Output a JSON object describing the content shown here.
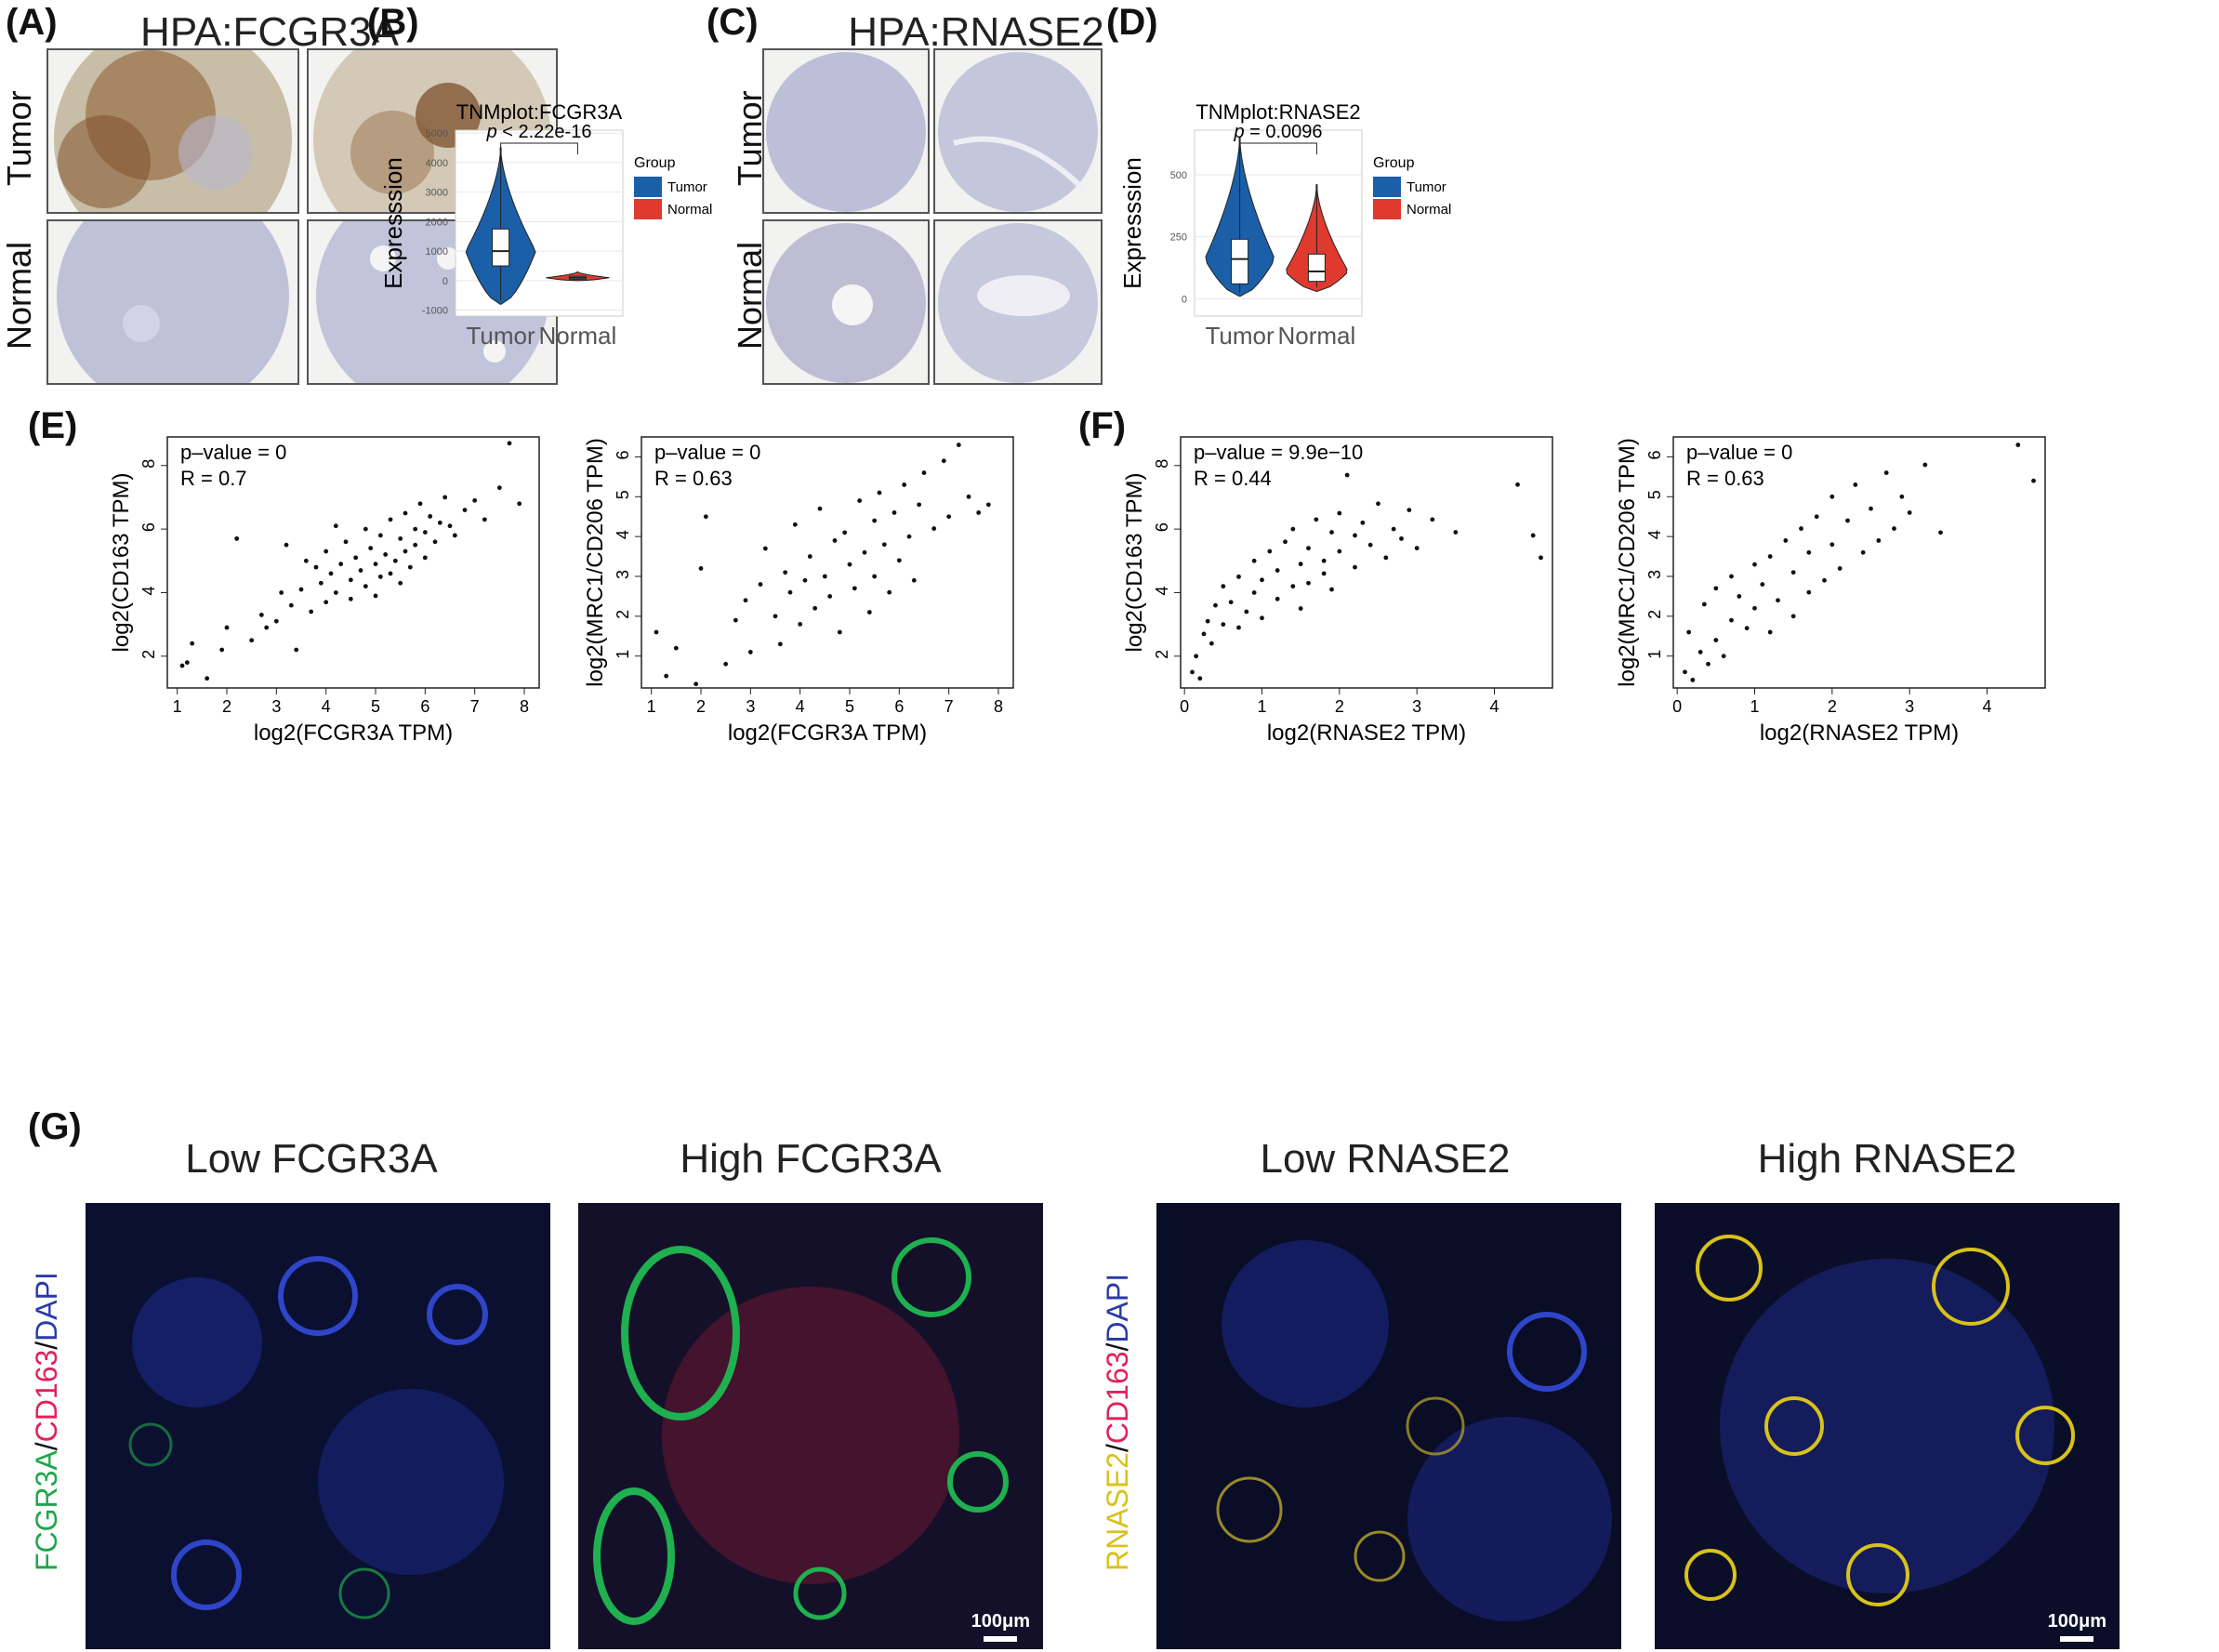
{
  "panels": {
    "A": {
      "label": "(A)",
      "title": "HPA:FCGR3A",
      "rows": [
        "Tumor",
        "Normal"
      ]
    },
    "B": {
      "label": "(B)"
    },
    "C": {
      "label": "(C)",
      "title": "HPA:RNASE2",
      "rows": [
        "Tumor",
        "Normal"
      ]
    },
    "D": {
      "label": "(D)"
    },
    "E": {
      "label": "(E)"
    },
    "F": {
      "label": "(F)"
    },
    "G": {
      "label": "(G)",
      "titles": [
        "Low FCGR3A",
        "High FCGR3A",
        "Low RNASE2",
        "High RNASE2"
      ],
      "side_left": {
        "parts": [
          "FCGR3A",
          "/",
          "CD163",
          "/",
          "DAPI"
        ]
      },
      "side_right": {
        "parts": [
          "RNASE2",
          "/",
          "CD163",
          "/",
          "DAPI"
        ]
      },
      "scalebar": "100μm"
    }
  },
  "colors": {
    "tumor": "#1a5fa8",
    "normal": "#e03a2f",
    "fcgr3a": "#1fa64a",
    "cd163": "#e0215a",
    "dapi": "#2b3aa8",
    "rnase2": "#d8c21a"
  },
  "chart_data": [
    {
      "id": "B",
      "type": "violin",
      "title": "TNMplot:FCGR3A",
      "ylabel": "Expresssion",
      "categories": [
        "Tumor",
        "Normal"
      ],
      "yticks": [
        5000,
        4000,
        3000,
        2000,
        1000,
        0,
        -1000
      ],
      "ylim": [
        -1200,
        5100
      ],
      "series": [
        {
          "name": "Tumor",
          "min": -800,
          "q1": 500,
          "median": 1000,
          "q3": 1750,
          "max": 4500
        },
        {
          "name": "Normal",
          "min": 0,
          "q1": 50,
          "median": 100,
          "q3": 150,
          "max": 300
        }
      ],
      "annotation": {
        "prefix": "p",
        "text": " < 2.22e-16"
      },
      "legend": {
        "title": "Group",
        "entries": [
          "Tumor",
          "Normal"
        ],
        "position": "right"
      }
    },
    {
      "id": "D",
      "type": "violin",
      "title": "TNMplot:RNASE2",
      "ylabel": "Expresssion",
      "categories": [
        "Tumor",
        "Normal"
      ],
      "yticks": [
        500,
        250,
        0
      ],
      "ylim": [
        -70,
        680
      ],
      "series": [
        {
          "name": "Tumor",
          "min": 10,
          "q1": 60,
          "median": 160,
          "q3": 240,
          "max": 650
        },
        {
          "name": "Normal",
          "min": 30,
          "q1": 70,
          "median": 110,
          "q3": 180,
          "max": 460
        }
      ],
      "annotation": {
        "prefix": "p",
        "text": " = 0.0096"
      },
      "legend": {
        "title": "Group",
        "entries": [
          "Tumor",
          "Normal"
        ],
        "position": "right"
      }
    },
    {
      "id": "E1",
      "type": "scatter",
      "xlabel": "log2(FCGR3A TPM)",
      "ylabel": "log2(CD163 TPM)",
      "xticks": [
        1,
        2,
        3,
        4,
        5,
        6,
        7,
        8
      ],
      "yticks": [
        2,
        4,
        6,
        8
      ],
      "xlim": [
        0.8,
        8.3
      ],
      "ylim": [
        1.0,
        8.9
      ],
      "pvalue": "p–value = 0",
      "r": "R = 0.7",
      "x": [
        1.1,
        1.3,
        1.2,
        1.6,
        1.9,
        2.0,
        2.2,
        2.5,
        2.7,
        2.8,
        3.0,
        3.1,
        3.2,
        3.3,
        3.4,
        3.5,
        3.6,
        3.7,
        3.8,
        3.9,
        4.0,
        4.0,
        4.1,
        4.2,
        4.2,
        4.3,
        4.4,
        4.5,
        4.5,
        4.6,
        4.7,
        4.8,
        4.8,
        4.9,
        5.0,
        5.0,
        5.1,
        5.1,
        5.2,
        5.3,
        5.3,
        5.4,
        5.5,
        5.5,
        5.6,
        5.6,
        5.7,
        5.8,
        5.8,
        5.9,
        6.0,
        6.0,
        6.1,
        6.2,
        6.3,
        6.4,
        6.5,
        6.6,
        6.8,
        7.0,
        7.2,
        7.5,
        7.7,
        7.9
      ],
      "y": [
        1.7,
        2.4,
        1.8,
        1.3,
        2.2,
        2.9,
        5.7,
        2.5,
        3.3,
        2.9,
        3.1,
        4.0,
        5.5,
        3.6,
        2.2,
        4.1,
        5.0,
        3.4,
        4.8,
        4.3,
        3.7,
        5.3,
        4.6,
        4.0,
        6.1,
        4.9,
        5.6,
        4.4,
        3.8,
        5.1,
        4.7,
        6.0,
        4.2,
        5.4,
        4.9,
        3.9,
        5.8,
        4.5,
        5.2,
        6.3,
        4.6,
        5.0,
        5.7,
        4.3,
        6.5,
        5.3,
        4.8,
        6.0,
        5.5,
        6.8,
        5.1,
        5.9,
        6.4,
        5.6,
        6.2,
        7.0,
        6.1,
        5.8,
        6.6,
        6.9,
        6.3,
        7.3,
        8.7,
        6.8
      ]
    },
    {
      "id": "E2",
      "type": "scatter",
      "xlabel": "log2(FCGR3A TPM)",
      "ylabel": "log2(MRC1/CD206 TPM)",
      "xticks": [
        1,
        2,
        3,
        4,
        5,
        6,
        7,
        8
      ],
      "yticks": [
        1,
        2,
        3,
        4,
        5,
        6
      ],
      "xlim": [
        0.8,
        8.3
      ],
      "ylim": [
        0.2,
        6.5
      ],
      "pvalue": "p–value = 0",
      "r": "R = 0.63",
      "x": [
        1.1,
        1.3,
        1.5,
        1.9,
        2.0,
        2.1,
        2.5,
        2.7,
        2.9,
        3.0,
        3.2,
        3.3,
        3.5,
        3.6,
        3.7,
        3.8,
        3.9,
        4.0,
        4.1,
        4.2,
        4.3,
        4.4,
        4.5,
        4.6,
        4.7,
        4.8,
        4.9,
        5.0,
        5.1,
        5.2,
        5.3,
        5.4,
        5.5,
        5.5,
        5.6,
        5.7,
        5.8,
        5.9,
        6.0,
        6.1,
        6.2,
        6.3,
        6.4,
        6.5,
        6.7,
        6.9,
        7.0,
        7.2,
        7.4,
        7.6,
        7.8
      ],
      "y": [
        1.6,
        0.5,
        1.2,
        0.3,
        3.2,
        4.5,
        0.8,
        1.9,
        2.4,
        1.1,
        2.8,
        3.7,
        2.0,
        1.3,
        3.1,
        2.6,
        4.3,
        1.8,
        2.9,
        3.5,
        2.2,
        4.7,
        3.0,
        2.5,
        3.9,
        1.6,
        4.1,
        3.3,
        2.7,
        4.9,
        3.6,
        2.1,
        4.4,
        3.0,
        5.1,
        3.8,
        2.6,
        4.6,
        3.4,
        5.3,
        4.0,
        2.9,
        4.8,
        5.6,
        4.2,
        5.9,
        4.5,
        6.3,
        5.0,
        4.6,
        4.8
      ]
    },
    {
      "id": "F1",
      "type": "scatter",
      "xlabel": "log2(RNASE2 TPM)",
      "ylabel": "log2(CD163 TPM)",
      "xticks": [
        0,
        1,
        2,
        3,
        4
      ],
      "yticks": [
        2,
        4,
        6,
        8
      ],
      "xlim": [
        -0.05,
        4.75
      ],
      "ylim": [
        1.0,
        8.9
      ],
      "pvalue": "p–value = 9.9e−10",
      "r": "R = 0.44",
      "x": [
        0.1,
        0.15,
        0.2,
        0.25,
        0.3,
        0.35,
        0.4,
        0.5,
        0.5,
        0.6,
        0.7,
        0.7,
        0.8,
        0.9,
        0.9,
        1.0,
        1.0,
        1.1,
        1.2,
        1.2,
        1.3,
        1.4,
        1.4,
        1.5,
        1.5,
        1.6,
        1.6,
        1.7,
        1.8,
        1.8,
        1.9,
        1.9,
        2.0,
        2.0,
        2.1,
        2.2,
        2.2,
        2.3,
        2.4,
        2.5,
        2.6,
        2.7,
        2.8,
        2.9,
        3.0,
        3.2,
        3.5,
        4.3,
        4.5,
        4.6
      ],
      "y": [
        1.5,
        2.0,
        1.3,
        2.7,
        3.1,
        2.4,
        3.6,
        3.0,
        4.2,
        3.7,
        4.5,
        2.9,
        3.4,
        5.0,
        4.0,
        4.4,
        3.2,
        5.3,
        4.7,
        3.8,
        5.6,
        4.2,
        6.0,
        4.9,
        3.5,
        5.4,
        4.3,
        6.3,
        5.0,
        4.6,
        5.9,
        4.1,
        6.5,
        5.3,
        7.7,
        5.8,
        4.8,
        6.2,
        5.5,
        6.8,
        5.1,
        6.0,
        5.7,
        6.6,
        5.4,
        6.3,
        5.9,
        7.4,
        5.8,
        5.1
      ]
    },
    {
      "id": "F2",
      "type": "scatter",
      "xlabel": "log2(RNASE2 TPM)",
      "ylabel": "log2(MRC1/CD206 TPM)",
      "xticks": [
        0,
        1,
        2,
        3,
        4
      ],
      "yticks": [
        1,
        2,
        3,
        4,
        5,
        6
      ],
      "xlim": [
        -0.05,
        4.75
      ],
      "ylim": [
        0.2,
        6.5
      ],
      "pvalue": "p–value = 0",
      "r": "R = 0.63",
      "x": [
        0.1,
        0.15,
        0.2,
        0.3,
        0.35,
        0.4,
        0.5,
        0.5,
        0.6,
        0.7,
        0.7,
        0.8,
        0.9,
        1.0,
        1.0,
        1.1,
        1.2,
        1.2,
        1.3,
        1.4,
        1.5,
        1.5,
        1.6,
        1.7,
        1.7,
        1.8,
        1.9,
        2.0,
        2.0,
        2.1,
        2.2,
        2.3,
        2.4,
        2.5,
        2.6,
        2.7,
        2.8,
        2.9,
        3.0,
        3.2,
        3.4,
        4.4,
        4.6
      ],
      "y": [
        0.6,
        1.6,
        0.4,
        1.1,
        2.3,
        0.8,
        1.4,
        2.7,
        1.0,
        3.0,
        1.9,
        2.5,
        1.7,
        3.3,
        2.2,
        2.8,
        1.6,
        3.5,
        2.4,
        3.9,
        2.0,
        3.1,
        4.2,
        2.6,
        3.6,
        4.5,
        2.9,
        3.8,
        5.0,
        3.2,
        4.4,
        5.3,
        3.6,
        4.7,
        3.9,
        5.6,
        4.2,
        5.0,
        4.6,
        5.8,
        4.1,
        6.3,
        5.4
      ]
    }
  ]
}
